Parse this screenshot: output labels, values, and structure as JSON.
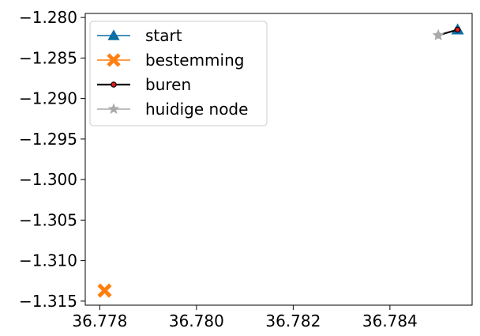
{
  "chart_data": {
    "type": "scatter",
    "title": "",
    "xlabel": "",
    "ylabel": "",
    "xlim": [
      36.7777,
      36.7857
    ],
    "ylim": [
      -1.3155,
      -1.2795
    ],
    "xticks": [
      36.778,
      36.78,
      36.782,
      36.784
    ],
    "xtick_labels": [
      "36.778",
      "36.780",
      "36.782",
      "36.784"
    ],
    "yticks": [
      -1.28,
      -1.285,
      -1.29,
      -1.295,
      -1.3,
      -1.305,
      -1.31,
      -1.315
    ],
    "ytick_labels": [
      "−1.280",
      "−1.285",
      "−1.290",
      "−1.295",
      "−1.300",
      "−1.305",
      "−1.310",
      "−1.315"
    ],
    "grid": false,
    "legend_position": "top-left",
    "series": [
      {
        "name": "start",
        "marker": "triangle",
        "color": "#0a6fa6",
        "points": [
          [
            36.7854,
            -1.2815
          ]
        ]
      },
      {
        "name": "bestemming",
        "marker": "x-filled",
        "color": "#ff7f0e",
        "points": [
          [
            36.7781,
            -1.3137
          ]
        ]
      },
      {
        "name": "buren",
        "marker": "circle-line",
        "color": "#000000",
        "marker_fill": "#e41a1c",
        "points": [
          [
            36.785,
            -1.2822
          ],
          [
            36.7854,
            -1.2815
          ]
        ]
      },
      {
        "name": "huidige node",
        "marker": "star",
        "color": "#aaaaaa",
        "points": [
          [
            36.785,
            -1.2822
          ]
        ]
      }
    ]
  }
}
